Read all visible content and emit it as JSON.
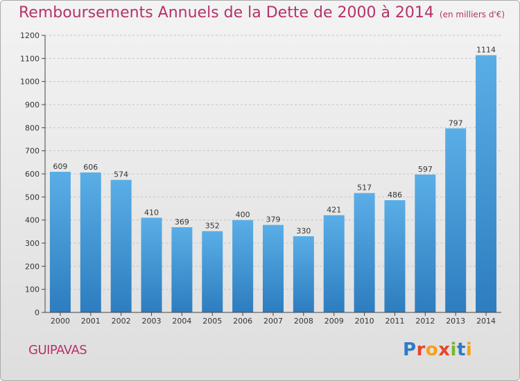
{
  "header": {
    "title": "Remboursements Annuels de la Dette de 2000 à 2014",
    "unit": "(en milliers d'€)"
  },
  "footer": {
    "commune": "GUIPAVAS",
    "logo_text": "Proxiti",
    "logo_colors": [
      "#2e7bc4",
      "#e8452c",
      "#f3a21b",
      "#e8452c",
      "#7bb62d",
      "#2e7bc4",
      "#f3a21b"
    ]
  },
  "colors": {
    "bar_light": "#5aaee6",
    "bar_dark": "#2d7dbf",
    "title": "#b5326a"
  },
  "chart_data": {
    "type": "bar",
    "title": "Remboursements Annuels de la Dette de 2000 à 2014",
    "subtitle": "(en milliers d'€)",
    "categories": [
      "2000",
      "2001",
      "2002",
      "2003",
      "2004",
      "2005",
      "2006",
      "2007",
      "2008",
      "2009",
      "2010",
      "2011",
      "2012",
      "2013",
      "2014"
    ],
    "values": [
      609,
      606,
      574,
      410,
      369,
      352,
      400,
      379,
      330,
      421,
      517,
      486,
      597,
      797,
      1114
    ],
    "ylim": [
      0,
      1200
    ],
    "yticks": [
      0,
      100,
      200,
      300,
      400,
      500,
      600,
      700,
      800,
      900,
      1000,
      1100,
      1200
    ],
    "grid": true,
    "data_labels": true
  }
}
